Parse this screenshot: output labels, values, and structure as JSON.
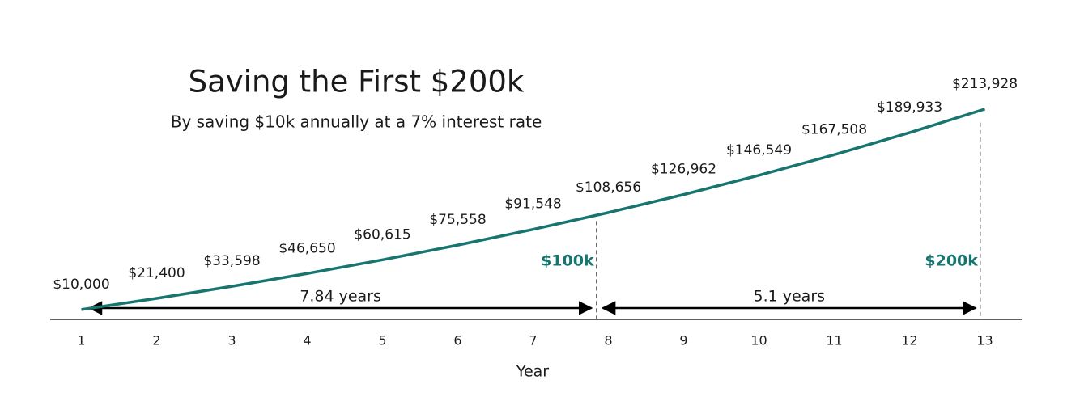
{
  "chart_data": {
    "type": "line",
    "title": "Saving the First $200k",
    "subtitle": "By saving $10k annually at a 7% interest rate",
    "x_label": "Year",
    "x": [
      1,
      2,
      3,
      4,
      5,
      6,
      7,
      8,
      9,
      10,
      11,
      12,
      13
    ],
    "series": [
      {
        "color": "#17756f",
        "values": [
          10000,
          21400,
          33598,
          46650,
          60615,
          75558,
          91548,
          108656,
          126962,
          146549,
          167508,
          189933,
          213928
        ],
        "value_labels": [
          "$10,000",
          "$21,400",
          "$33,598",
          "$46,650",
          "$60,615",
          "$75,558",
          "$91,548",
          "$108,656",
          "$126,962",
          "$146,549",
          "$167,508",
          "$189,933",
          "$213,928"
        ]
      }
    ],
    "xlim": [
      0.5,
      13.5
    ],
    "xticks": [
      1,
      2,
      3,
      4,
      5,
      6,
      7,
      8,
      9,
      10,
      11,
      12,
      13
    ],
    "ylim": [
      0,
      250000
    ],
    "thresholds": [
      {
        "value": 100000,
        "label": "$100k",
        "x": 7.84,
        "duration": "7.84 years"
      },
      {
        "value": 200000,
        "label": "$200k",
        "x": 12.94,
        "duration": "5.1 years"
      }
    ]
  }
}
